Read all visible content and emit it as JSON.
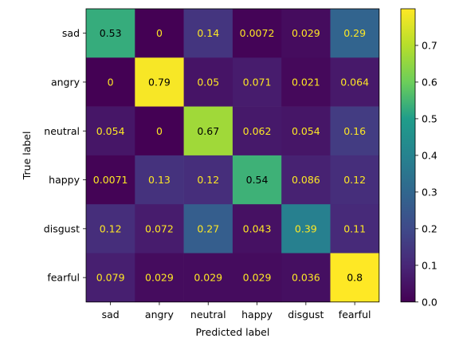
{
  "chart_data": {
    "type": "heatmap",
    "title": "",
    "xlabel": "Predicted label",
    "ylabel": "True label",
    "x_categories": [
      "sad",
      "angry",
      "neutral",
      "happy",
      "disgust",
      "fearful"
    ],
    "y_categories": [
      "sad",
      "angry",
      "neutral",
      "happy",
      "disgust",
      "fearful"
    ],
    "values": [
      [
        0.53,
        0,
        0.14,
        0.0072,
        0.029,
        0.29
      ],
      [
        0,
        0.79,
        0.05,
        0.071,
        0.021,
        0.064
      ],
      [
        0.054,
        0,
        0.67,
        0.062,
        0.054,
        0.16
      ],
      [
        0.0071,
        0.13,
        0.12,
        0.54,
        0.086,
        0.12
      ],
      [
        0.12,
        0.072,
        0.27,
        0.043,
        0.39,
        0.11
      ],
      [
        0.079,
        0.029,
        0.029,
        0.029,
        0.036,
        0.8
      ]
    ],
    "cell_labels": [
      [
        "0.53",
        "0",
        "0.14",
        "0.0072",
        "0.029",
        "0.29"
      ],
      [
        "0",
        "0.79",
        "0.05",
        "0.071",
        "0.021",
        "0.064"
      ],
      [
        "0.054",
        "0",
        "0.67",
        "0.062",
        "0.054",
        "0.16"
      ],
      [
        "0.0071",
        "0.13",
        "0.12",
        "0.54",
        "0.086",
        "0.12"
      ],
      [
        "0.12",
        "0.072",
        "0.27",
        "0.043",
        "0.39",
        "0.11"
      ],
      [
        "0.079",
        "0.029",
        "0.029",
        "0.029",
        "0.036",
        "0.8"
      ]
    ],
    "colormap": "viridis",
    "colorbar": {
      "range": [
        0,
        0.8
      ],
      "ticks": [
        0.0,
        0.1,
        0.2,
        0.3,
        0.4,
        0.5,
        0.6,
        0.7
      ],
      "tick_labels": [
        "0.0",
        "0.1",
        "0.2",
        "0.3",
        "0.4",
        "0.5",
        "0.6",
        "0.7"
      ]
    },
    "text_colors": {
      "on_dark": "#fde725",
      "on_light": "#000000"
    }
  }
}
